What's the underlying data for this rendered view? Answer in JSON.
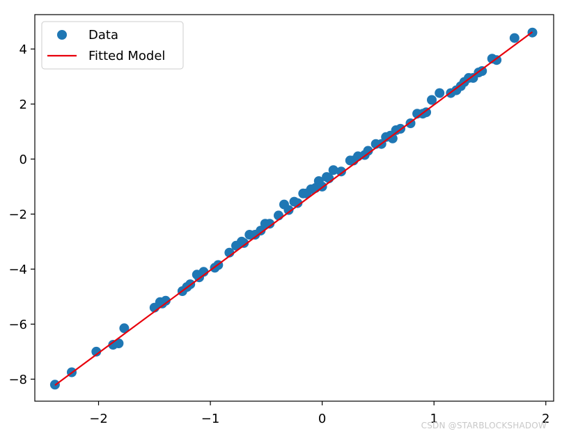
{
  "chart_data": {
    "type": "scatter",
    "title": "",
    "xlabel": "",
    "ylabel": "",
    "xlim": [
      -2.57,
      2.07
    ],
    "ylim": [
      -8.8,
      5.25
    ],
    "xticks": [
      -2,
      -1,
      0,
      1,
      2
    ],
    "yticks": [
      -8,
      -6,
      -4,
      -2,
      0,
      2,
      4
    ],
    "xtick_labels": [
      "−2",
      "−1",
      "0",
      "1",
      "2"
    ],
    "ytick_labels": [
      "−8",
      "−6",
      "−4",
      "−2",
      "0",
      "2",
      "4"
    ],
    "grid": false,
    "legend": {
      "placement": "upper-left",
      "entries": [
        {
          "label": "Data",
          "marker": "circle",
          "color": "#1f77b4"
        },
        {
          "label": "Fitted Model",
          "marker": "line",
          "color": "#e8000b"
        }
      ]
    },
    "series": [
      {
        "name": "Data",
        "type": "scatter",
        "color": "#1f77b4",
        "x": [
          -2.39,
          -2.24,
          -2.02,
          -1.87,
          -1.82,
          -1.77,
          -1.5,
          -1.45,
          -1.43,
          -1.4,
          -1.25,
          -1.21,
          -1.18,
          -1.12,
          -1.1,
          -1.06,
          -0.96,
          -0.93,
          -0.83,
          -0.77,
          -0.72,
          -0.7,
          -0.65,
          -0.6,
          -0.55,
          -0.51,
          -0.47,
          -0.39,
          -0.34,
          -0.3,
          -0.25,
          -0.22,
          -0.17,
          -0.14,
          -0.1,
          -0.06,
          -0.03,
          0.0,
          0.04,
          0.06,
          0.1,
          0.17,
          0.25,
          0.28,
          0.32,
          0.38,
          0.41,
          0.48,
          0.53,
          0.57,
          0.61,
          0.63,
          0.66,
          0.7,
          0.79,
          0.85,
          0.9,
          0.93,
          0.98,
          1.05,
          1.15,
          1.2,
          1.24,
          1.27,
          1.31,
          1.35,
          1.4,
          1.43,
          1.52,
          1.56,
          1.72,
          1.88
        ],
        "y": [
          -8.2,
          -7.75,
          -7.0,
          -6.75,
          -6.7,
          -6.15,
          -5.4,
          -5.2,
          -5.25,
          -5.15,
          -4.8,
          -4.65,
          -4.55,
          -4.2,
          -4.3,
          -4.1,
          -3.95,
          -3.85,
          -3.4,
          -3.15,
          -3.0,
          -3.05,
          -2.75,
          -2.75,
          -2.6,
          -2.35,
          -2.35,
          -2.05,
          -1.65,
          -1.85,
          -1.55,
          -1.6,
          -1.25,
          -1.25,
          -1.1,
          -1.05,
          -0.8,
          -1.0,
          -0.65,
          -0.7,
          -0.4,
          -0.45,
          -0.05,
          -0.05,
          0.1,
          0.15,
          0.3,
          0.55,
          0.55,
          0.8,
          0.85,
          0.75,
          1.05,
          1.1,
          1.3,
          1.65,
          1.65,
          1.7,
          2.15,
          2.4,
          2.4,
          2.5,
          2.65,
          2.8,
          2.95,
          2.95,
          3.15,
          3.2,
          3.65,
          3.6,
          4.4,
          4.6
        ]
      },
      {
        "name": "Fitted Model",
        "type": "line",
        "color": "#e8000b",
        "x": [
          -2.39,
          1.88
        ],
        "y": [
          -8.22,
          4.62
        ]
      }
    ]
  },
  "watermark": "CSDN @STARBLOCKSHADOW"
}
